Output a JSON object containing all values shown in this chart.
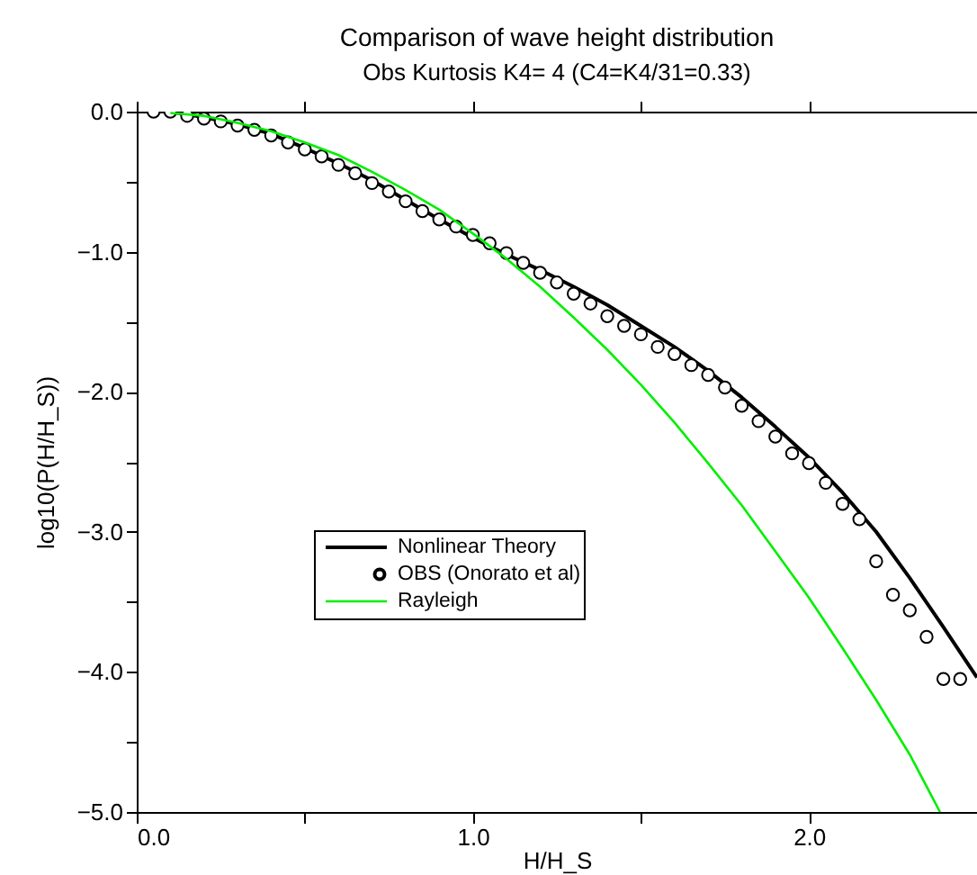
{
  "chart_data": {
    "type": "line",
    "title": "Comparison of wave height distribution",
    "subtitle": "Obs Kurtosis  K4= 4 (C4=K4/31=0.33)",
    "xlabel": "H/H_S",
    "ylabel": "log10(P(H/H_S))",
    "xlim": [
      0,
      2.5
    ],
    "ylim": [
      -5,
      0
    ],
    "xticks": [
      {
        "value": 0,
        "label": "0.0"
      },
      {
        "value": 0.5,
        "label": null
      },
      {
        "value": 1,
        "label": "1.0"
      },
      {
        "value": 1.5,
        "label": null
      },
      {
        "value": 2,
        "label": "2.0"
      }
    ],
    "yticks": [
      {
        "value": 0,
        "label": "0.0"
      },
      {
        "value": -0.5,
        "label": null
      },
      {
        "value": -1,
        "label": "−1.0"
      },
      {
        "value": -1.5,
        "label": null
      },
      {
        "value": -2,
        "label": "−2.0"
      },
      {
        "value": -2.5,
        "label": null
      },
      {
        "value": -3,
        "label": "−3.0"
      },
      {
        "value": -3.5,
        "label": null
      },
      {
        "value": -4,
        "label": "−4.0"
      },
      {
        "value": -4.5,
        "label": null
      },
      {
        "value": -5,
        "label": "−5.0"
      }
    ],
    "grid": false,
    "legend": "center",
    "series": [
      {
        "name": "Nonlinear Theory",
        "color": "#000000",
        "x": [
          0.1,
          0.2,
          0.3,
          0.4,
          0.5,
          0.6,
          0.7,
          0.8,
          0.9,
          1.0,
          1.1,
          1.2,
          1.3,
          1.4,
          1.5,
          1.6,
          1.7,
          1.8,
          1.9,
          2.0,
          2.1,
          2.2,
          2.3,
          2.4,
          2.5
        ],
        "values": [
          0,
          -0.04,
          -0.09,
          -0.16,
          -0.26,
          -0.37,
          -0.49,
          -0.63,
          -0.77,
          -0.9,
          -1.02,
          -1.13,
          -1.25,
          -1.38,
          -1.53,
          -1.68,
          -1.85,
          -2.04,
          -2.25,
          -2.47,
          -2.72,
          -3.0,
          -3.33,
          -3.68,
          -4.04
        ]
      },
      {
        "name": "OBS (Onorato et al)",
        "type": "scatter",
        "marker": "circle",
        "color": "#000000",
        "x": [
          0.05,
          0.1,
          0.15,
          0.2,
          0.25,
          0.3,
          0.35,
          0.4,
          0.45,
          0.5,
          0.55,
          0.6,
          0.65,
          0.7,
          0.75,
          0.8,
          0.85,
          0.9,
          0.95,
          1.0,
          1.05,
          1.1,
          1.15,
          1.2,
          1.25,
          1.3,
          1.35,
          1.4,
          1.45,
          1.5,
          1.55,
          1.6,
          1.65,
          1.7,
          1.75,
          1.8,
          1.85,
          1.9,
          1.95,
          2.0,
          2.05,
          2.1,
          2.15,
          2.2,
          2.25,
          2.3,
          2.35,
          2.4,
          2.45
        ],
        "values": [
          0,
          0,
          -0.03,
          -0.05,
          -0.07,
          -0.1,
          -0.13,
          -0.17,
          -0.22,
          -0.27,
          -0.32,
          -0.38,
          -0.44,
          -0.51,
          -0.57,
          -0.64,
          -0.71,
          -0.77,
          -0.82,
          -0.88,
          -0.94,
          -1.01,
          -1.08,
          -1.15,
          -1.22,
          -1.3,
          -1.37,
          -1.46,
          -1.53,
          -1.59,
          -1.68,
          -1.73,
          -1.81,
          -1.88,
          -1.97,
          -2.1,
          -2.21,
          -2.32,
          -2.44,
          -2.51,
          -2.65,
          -2.8,
          -2.91,
          -3.21,
          -3.45,
          -3.56,
          -3.75,
          -4.05,
          -4.05
        ]
      },
      {
        "name": "Rayleigh",
        "color": "#00ee00",
        "x": [
          0.1,
          0.2,
          0.3,
          0.4,
          0.5,
          0.6,
          0.7,
          0.8,
          0.9,
          1.0,
          1.1,
          1.2,
          1.3,
          1.4,
          1.5,
          1.6,
          1.7,
          1.8,
          1.9,
          2.0,
          2.1,
          2.2,
          2.3,
          2.39
        ],
        "values": [
          -0.01,
          -0.03,
          -0.08,
          -0.14,
          -0.22,
          -0.31,
          -0.43,
          -0.56,
          -0.7,
          -0.87,
          -1.05,
          -1.25,
          -1.47,
          -1.7,
          -1.95,
          -2.22,
          -2.51,
          -2.81,
          -3.14,
          -3.47,
          -3.83,
          -4.2,
          -4.59,
          -5.0
        ]
      }
    ]
  }
}
